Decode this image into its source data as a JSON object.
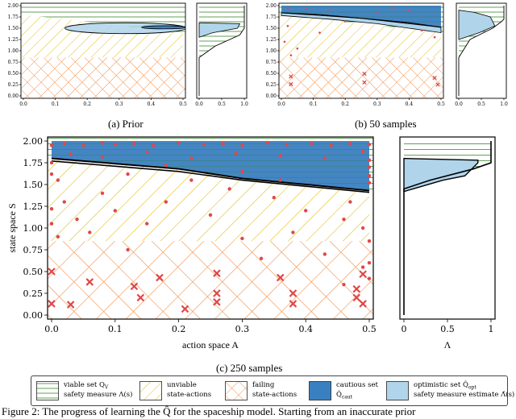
{
  "chart_data": [
    {
      "type": "heatmap",
      "panel": "a",
      "label": "(a) Prior",
      "xlim": [
        0,
        0.5
      ],
      "ylim": [
        0,
        2.0
      ],
      "xticks": [
        "0.0",
        "0.1",
        "0.2",
        "0.3",
        "0.4",
        "0.5"
      ],
      "yticks": [
        "0.00",
        "0.25",
        "0.50",
        "0.75",
        "1.00",
        "1.25",
        "1.50",
        "1.75",
        "2.00"
      ],
      "viable_boundary": [
        [
          0,
          1.8
        ],
        [
          0.1,
          1.72
        ],
        [
          0.2,
          1.64
        ],
        [
          0.3,
          1.56
        ],
        [
          0.4,
          1.48
        ],
        [
          0.5,
          1.4
        ]
      ],
      "failing_threshold": 0.85,
      "prior_ellipse_outer": {
        "cx": 0.32,
        "cy": 1.5,
        "rx": 0.19,
        "ry": 0.12
      },
      "prior_ellipse_inner": {
        "cx": 0.44,
        "cy": 1.52,
        "rx": 0.07,
        "ry": 0.035
      },
      "cautious_region": [],
      "failures": [],
      "safe_points": [],
      "side_measure": [
        [
          0,
          0
        ],
        [
          0,
          0.85
        ],
        [
          0.35,
          1.1
        ],
        [
          0.9,
          1.35
        ],
        [
          1,
          1.5
        ],
        [
          1,
          2.0
        ]
      ],
      "side_estimate": [
        [
          0,
          1.3
        ],
        [
          0.3,
          1.4
        ],
        [
          0.85,
          1.5
        ],
        [
          0.9,
          1.6
        ],
        [
          0,
          1.62
        ]
      ]
    },
    {
      "type": "heatmap",
      "panel": "b",
      "label": "(b) 50 samples",
      "xlim": [
        0,
        0.5
      ],
      "ylim": [
        0,
        2.0
      ],
      "xticks": [
        "0.0",
        "0.1",
        "0.2",
        "0.3",
        "0.4",
        "0.5"
      ],
      "yticks": [
        "0.00",
        "0.25",
        "0.50",
        "0.75",
        "1.00",
        "1.25",
        "1.50",
        "1.75",
        "2.00"
      ],
      "failing_threshold": 0.85,
      "cautious_region": [
        [
          0,
          1.84
        ],
        [
          0.12,
          1.8
        ],
        [
          0.25,
          1.72
        ],
        [
          0.4,
          1.62
        ],
        [
          0.5,
          1.52
        ],
        [
          0.5,
          2.0
        ],
        [
          0,
          2.0
        ]
      ],
      "optimistic_region": [
        [
          0,
          1.78
        ],
        [
          0.15,
          1.7
        ],
        [
          0.3,
          1.6
        ],
        [
          0.5,
          1.4
        ],
        [
          0.5,
          1.52
        ],
        [
          0.25,
          1.72
        ],
        [
          0,
          1.84
        ]
      ],
      "failures": [
        [
          0.03,
          0.43
        ],
        [
          0.26,
          0.49
        ],
        [
          0.26,
          0.3
        ],
        [
          0.48,
          0.4
        ],
        [
          0.49,
          0.25
        ],
        [
          0.03,
          0.26
        ]
      ],
      "safe_points": [
        [
          0.01,
          1.2
        ],
        [
          0.02,
          1.55
        ],
        [
          0.03,
          0.9
        ],
        [
          0.05,
          1.05
        ],
        [
          0.12,
          1.4
        ],
        [
          0.2,
          1.65
        ],
        [
          0.3,
          1.85
        ],
        [
          0.35,
          1.95
        ],
        [
          0.4,
          1.9
        ],
        [
          0.44,
          1.45
        ],
        [
          0.48,
          1.3
        ],
        [
          0.02,
          1.95
        ],
        [
          0.08,
          1.93
        ],
        [
          0.15,
          1.88
        ]
      ],
      "side_measure": [
        [
          0,
          0
        ],
        [
          0,
          0.85
        ],
        [
          0.25,
          1.25
        ],
        [
          0.75,
          1.5
        ],
        [
          0.95,
          1.65
        ],
        [
          1,
          1.7
        ],
        [
          1,
          2.0
        ]
      ],
      "side_estimate": [
        [
          0,
          1.25
        ],
        [
          0.45,
          1.4
        ],
        [
          0.8,
          1.55
        ],
        [
          0.7,
          1.75
        ],
        [
          0.35,
          1.85
        ],
        [
          0,
          1.9
        ]
      ]
    },
    {
      "type": "heatmap",
      "panel": "c",
      "label": "(c) 250 samples",
      "xlabel": "action space A",
      "ylabel": "state space S",
      "xlim": [
        0,
        0.5
      ],
      "ylim": [
        0,
        2.0
      ],
      "xticks": [
        "0.0",
        "0.1",
        "0.2",
        "0.3",
        "0.4",
        "0.5"
      ],
      "yticks": [
        "0.00",
        "0.25",
        "0.50",
        "0.75",
        "1.00",
        "1.25",
        "1.50",
        "1.75",
        "2.00"
      ],
      "failing_threshold": 0.85,
      "cautious_region": [
        [
          0,
          1.8
        ],
        [
          0.1,
          1.74
        ],
        [
          0.2,
          1.68
        ],
        [
          0.3,
          1.57
        ],
        [
          0.4,
          1.5
        ],
        [
          0.5,
          1.43
        ],
        [
          0.5,
          2.0
        ],
        [
          0,
          2.0
        ]
      ],
      "boundary_a": [
        [
          0,
          1.8
        ],
        [
          0.1,
          1.74
        ],
        [
          0.2,
          1.68
        ],
        [
          0.3,
          1.57
        ],
        [
          0.4,
          1.5
        ],
        [
          0.5,
          1.43
        ]
      ],
      "boundary_b": [
        [
          0,
          1.77
        ],
        [
          0.1,
          1.71
        ],
        [
          0.2,
          1.65
        ],
        [
          0.3,
          1.55
        ],
        [
          0.4,
          1.48
        ],
        [
          0.5,
          1.41
        ]
      ],
      "failures": [
        [
          0.0,
          0.5
        ],
        [
          0.0,
          0.13
        ],
        [
          0.03,
          0.12
        ],
        [
          0.06,
          0.38
        ],
        [
          0.13,
          0.33
        ],
        [
          0.14,
          0.2
        ],
        [
          0.17,
          0.43
        ],
        [
          0.21,
          0.07
        ],
        [
          0.26,
          0.48
        ],
        [
          0.26,
          0.25
        ],
        [
          0.26,
          0.15
        ],
        [
          0.36,
          0.43
        ],
        [
          0.38,
          0.25
        ],
        [
          0.38,
          0.13
        ],
        [
          0.48,
          0.3
        ],
        [
          0.48,
          0.2
        ],
        [
          0.49,
          0.13
        ],
        [
          0.49,
          0.47
        ]
      ],
      "safe_points": [
        [
          0.0,
          1.95
        ],
        [
          0.02,
          1.97
        ],
        [
          0.05,
          1.95
        ],
        [
          0.08,
          1.98
        ],
        [
          0.1,
          1.96
        ],
        [
          0.13,
          1.97
        ],
        [
          0.16,
          1.95
        ],
        [
          0.2,
          1.98
        ],
        [
          0.24,
          1.96
        ],
        [
          0.27,
          1.97
        ],
        [
          0.3,
          1.95
        ],
        [
          0.34,
          1.98
        ],
        [
          0.37,
          1.96
        ],
        [
          0.41,
          1.97
        ],
        [
          0.44,
          1.95
        ],
        [
          0.47,
          1.97
        ],
        [
          0.5,
          1.96
        ],
        [
          0.03,
          1.85
        ],
        [
          0.08,
          1.82
        ],
        [
          0.15,
          1.87
        ],
        [
          0.22,
          1.8
        ],
        [
          0.29,
          1.86
        ],
        [
          0.36,
          1.83
        ],
        [
          0.43,
          1.8
        ],
        [
          0.49,
          1.88
        ],
        [
          0.5,
          1.78
        ],
        [
          0.5,
          1.7
        ],
        [
          0.5,
          1.6
        ],
        [
          0.5,
          1.52
        ],
        [
          0.0,
          1.75
        ],
        [
          0.0,
          1.62
        ],
        [
          0.01,
          1.55
        ],
        [
          0.02,
          1.3
        ],
        [
          0.04,
          1.1
        ],
        [
          0.06,
          0.95
        ],
        [
          0.08,
          1.4
        ],
        [
          0.1,
          1.2
        ],
        [
          0.12,
          0.75
        ],
        [
          0.15,
          1.05
        ],
        [
          0.18,
          1.3
        ],
        [
          0.22,
          1.55
        ],
        [
          0.25,
          1.15
        ],
        [
          0.28,
          1.45
        ],
        [
          0.3,
          0.88
        ],
        [
          0.33,
          0.65
        ],
        [
          0.35,
          1.35
        ],
        [
          0.38,
          0.95
        ],
        [
          0.4,
          1.2
        ],
        [
          0.43,
          0.7
        ],
        [
          0.46,
          1.1
        ],
        [
          0.47,
          1.3
        ],
        [
          0.49,
          1.0
        ],
        [
          0.5,
          0.85
        ],
        [
          0.5,
          0.6
        ],
        [
          0.5,
          0.42
        ],
        [
          0.0,
          1.22
        ],
        [
          0.0,
          1.05
        ],
        [
          0.01,
          0.9
        ],
        [
          0.46,
          0.35
        ],
        [
          0.49,
          0.55
        ],
        [
          0.3,
          1.65
        ],
        [
          0.36,
          1.55
        ],
        [
          0.12,
          1.62
        ],
        [
          0.18,
          1.72
        ]
      ],
      "side_xlabel": "Λ",
      "side_xticks": [
        "0",
        "0.5",
        "1"
      ],
      "side_measure": [
        [
          0,
          0
        ],
        [
          0,
          1.45
        ],
        [
          0.3,
          1.55
        ],
        [
          0.8,
          1.68
        ],
        [
          1.0,
          1.75
        ],
        [
          1.0,
          2.0
        ]
      ],
      "side_estimate": [
        [
          0,
          1.42
        ],
        [
          0.45,
          1.55
        ],
        [
          0.7,
          1.6
        ],
        [
          0.85,
          1.75
        ],
        [
          0.85,
          1.78
        ],
        [
          0,
          1.8
        ]
      ]
    }
  ],
  "colors": {
    "green": "#3a8a2a",
    "yellow": "#e0c020",
    "orange": "#f0904a",
    "cautious": "#3a80c0",
    "optimistic": "#b0d4ea",
    "failure": "#e04848",
    "point": "#e04848"
  },
  "panels": {
    "a_label": "(a) Prior",
    "b_label": "(b) 50 samples",
    "c_label": "(c) 250 samples",
    "xlabel": "action space A",
    "ylabel": "state space S",
    "lambda_label": "Λ"
  },
  "legend": {
    "viable_line1": "viable set Q",
    "viable_sub": "V",
    "viable_line2": "safety measure Λ(s)",
    "unviable_line1": "unviable",
    "unviable_line2": "state-actions",
    "failing_line1": "failing",
    "failing_line2": "state-actions",
    "cautious_line1": "cautious set",
    "cautious_line2": "Q̂",
    "cautious_sub": "caut",
    "optimistic_line1": "optimistic set Q̂",
    "optimistic_sub": "opt",
    "optimistic_line2": "safety measure estimate Λ̂(s)"
  },
  "caption": "Figure 2: The progress of learning the Q̂   for the spaceship model. Starting from an inaccurate prior"
}
